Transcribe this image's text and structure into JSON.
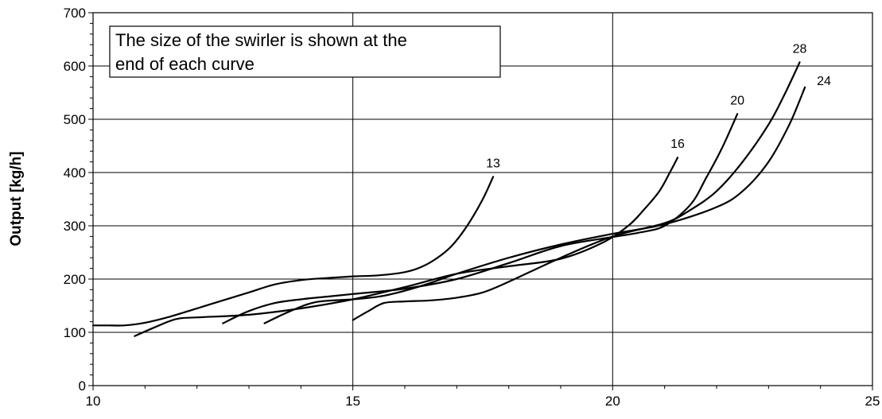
{
  "chart_data": {
    "type": "line",
    "title": "",
    "xlabel": "",
    "ylabel": "Output [kg/h]",
    "xlim": [
      10,
      25
    ],
    "ylim": [
      0,
      700
    ],
    "x_ticks": [
      10,
      15,
      20,
      25
    ],
    "y_ticks": [
      0,
      100,
      200,
      300,
      400,
      500,
      600,
      700
    ],
    "grid": true,
    "legend": "none",
    "line_color": "#000000",
    "annotation": {
      "lines": [
        "The size of the swirler is shown at the",
        "end of each curve"
      ]
    },
    "series": [
      {
        "name": "13",
        "x": [
          10,
          10.3,
          10.6,
          11,
          11.5,
          12,
          12.5,
          13,
          13.5,
          14,
          14.5,
          15,
          15.5,
          16,
          16.3,
          16.6,
          16.9,
          17.2,
          17.5,
          17.7
        ],
        "y": [
          113,
          113,
          113,
          118,
          130,
          145,
          160,
          175,
          190,
          198,
          202,
          205,
          207,
          213,
          222,
          238,
          262,
          300,
          350,
          392
        ]
      },
      {
        "name": "16",
        "x": [
          10.8,
          11.2,
          11.6,
          12,
          13,
          14,
          15,
          16,
          17,
          18,
          19,
          19.8,
          20.3,
          20.6,
          20.9,
          21.1,
          21.25
        ],
        "y": [
          93,
          110,
          125,
          128,
          133,
          145,
          162,
          185,
          210,
          224,
          238,
          268,
          300,
          330,
          365,
          400,
          428
        ]
      },
      {
        "name": "20",
        "x": [
          12.5,
          13,
          13.5,
          14,
          14.5,
          15,
          16,
          17,
          18,
          19,
          20,
          20.5,
          21,
          21.5,
          21.8,
          22.1,
          22.4
        ],
        "y": [
          117,
          140,
          155,
          162,
          167,
          172,
          182,
          200,
          230,
          262,
          279,
          287,
          300,
          340,
          390,
          445,
          510
        ]
      },
      {
        "name": "24",
        "x": [
          13.3,
          13.8,
          14.3,
          15,
          15.5,
          16,
          16.5,
          17,
          18,
          19,
          20,
          21,
          22,
          22.5,
          23,
          23.4,
          23.7
        ],
        "y": [
          117,
          140,
          157,
          162,
          167,
          178,
          193,
          210,
          240,
          265,
          285,
          303,
          335,
          365,
          420,
          490,
          560
        ]
      },
      {
        "name": "28",
        "x": [
          15,
          15.3,
          15.6,
          16,
          16.5,
          17,
          17.5,
          18,
          19,
          20,
          21,
          21.5,
          22,
          22.5,
          23,
          23.3,
          23.6
        ],
        "y": [
          123,
          140,
          155,
          158,
          160,
          165,
          175,
          195,
          240,
          280,
          305,
          330,
          365,
          420,
          490,
          545,
          607
        ]
      }
    ]
  }
}
